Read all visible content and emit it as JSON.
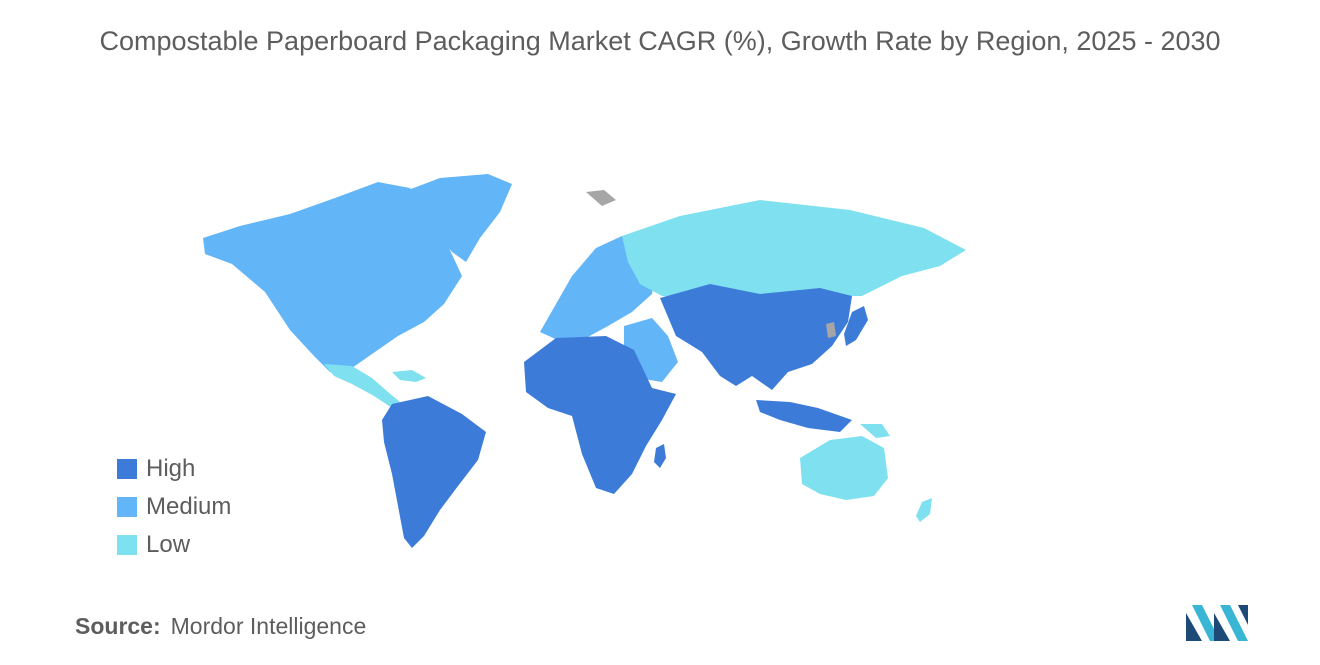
{
  "title": "Compostable Paperboard Packaging Market CAGR (%), Growth Rate by Region, 2025 - 2030",
  "colors": {
    "high": "#3d7bd9",
    "medium": "#62b5f7",
    "low": "#7fe1ef",
    "no_data": "#a6a6a6",
    "logo_dark": "#1e4a78",
    "logo_light": "#38b6d3"
  },
  "legend": [
    {
      "label": "High",
      "color": "#3d7bd9"
    },
    {
      "label": "Medium",
      "color": "#62b5f7"
    },
    {
      "label": "Low",
      "color": "#7fe1ef"
    }
  ],
  "source": {
    "label": "Source:",
    "value": "Mordor Intelligence"
  },
  "logo": {
    "icon": "mordor-intelligence-logo-icon"
  }
}
